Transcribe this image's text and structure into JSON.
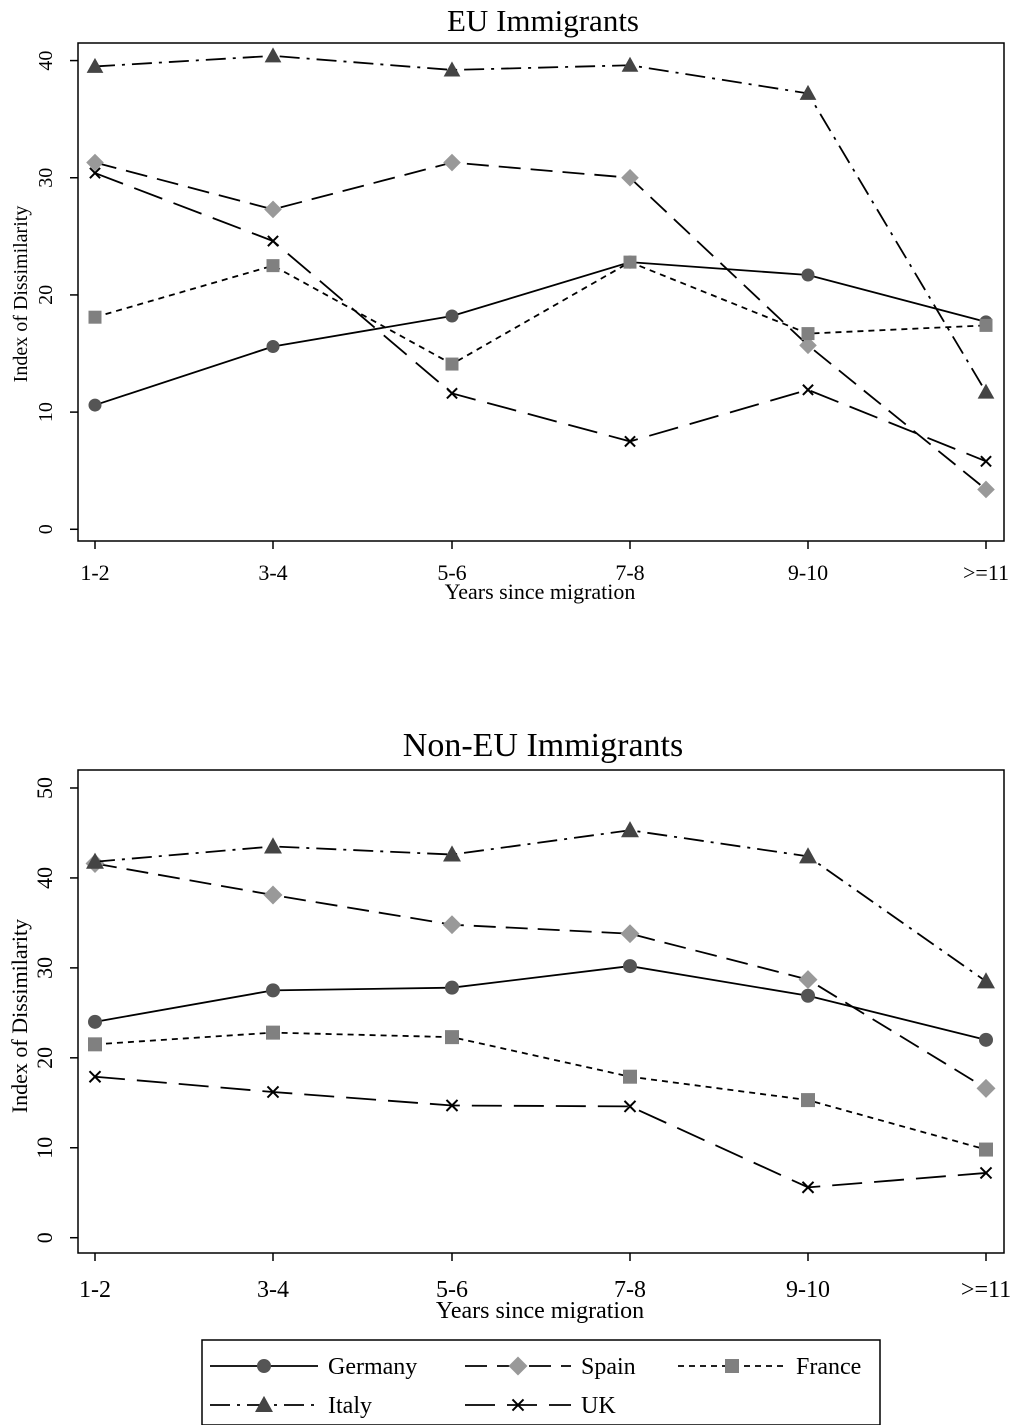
{
  "chart_data": [
    {
      "type": "line",
      "title": "EU Immigrants",
      "xlabel": "Years since migration",
      "ylabel": "Index of Dissimilarity",
      "categories": [
        "1-2",
        "3-4",
        "5-6",
        "7-8",
        "9-10",
        ">=11"
      ],
      "yticks": [
        0,
        10,
        20,
        30,
        40
      ],
      "ylim": [
        -1,
        41.5
      ],
      "grid": false,
      "series": [
        {
          "name": "Germany",
          "values": [
            10.6,
            15.6,
            18.2,
            22.8,
            21.7,
            17.7
          ]
        },
        {
          "name": "Spain",
          "values": [
            31.3,
            27.3,
            31.3,
            30.0,
            15.7,
            3.4
          ]
        },
        {
          "name": "France",
          "values": [
            18.1,
            22.5,
            14.1,
            22.8,
            16.7,
            17.4
          ]
        },
        {
          "name": "Italy",
          "values": [
            39.5,
            40.4,
            39.2,
            39.6,
            37.2,
            11.7
          ]
        },
        {
          "name": "UK",
          "values": [
            30.4,
            24.6,
            11.6,
            7.5,
            11.9,
            5.8
          ]
        }
      ]
    },
    {
      "type": "line",
      "title": "Non-EU Immigrants",
      "xlabel": "Years since migration",
      "ylabel": "Index of Dissimilarity",
      "categories": [
        "1-2",
        "3-4",
        "5-6",
        "7-8",
        "9-10",
        ">=11"
      ],
      "yticks": [
        0,
        10,
        20,
        30,
        40,
        50
      ],
      "ylim": [
        -1.7,
        52
      ],
      "grid": false,
      "series": [
        {
          "name": "Germany",
          "values": [
            24.0,
            27.5,
            27.8,
            30.2,
            26.9,
            22.0
          ]
        },
        {
          "name": "Spain",
          "values": [
            41.6,
            38.1,
            34.8,
            33.8,
            28.7,
            16.6
          ]
        },
        {
          "name": "France",
          "values": [
            21.5,
            22.8,
            22.3,
            17.9,
            15.3,
            9.8
          ]
        },
        {
          "name": "Italy",
          "values": [
            41.8,
            43.5,
            42.6,
            45.3,
            42.4,
            28.5
          ]
        },
        {
          "name": "UK",
          "values": [
            17.9,
            16.2,
            14.7,
            14.6,
            5.6,
            7.2
          ]
        }
      ]
    }
  ],
  "styles": {
    "Germany": {
      "dash": "",
      "marker": "circle",
      "color": "#555555"
    },
    "Spain": {
      "dash": "22,10",
      "marker": "diamond",
      "color": "#999999"
    },
    "France": {
      "dash": "6,5",
      "marker": "square",
      "color": "#808080"
    },
    "Italy": {
      "dash": "20,7,3,7",
      "marker": "triangle",
      "color": "#444444"
    },
    "UK": {
      "dash": "30,12",
      "marker": "x",
      "color": "#000000"
    }
  },
  "legend": {
    "placement": "bottom",
    "items": [
      "Germany",
      "Spain",
      "France",
      "Italy",
      "UK"
    ]
  }
}
